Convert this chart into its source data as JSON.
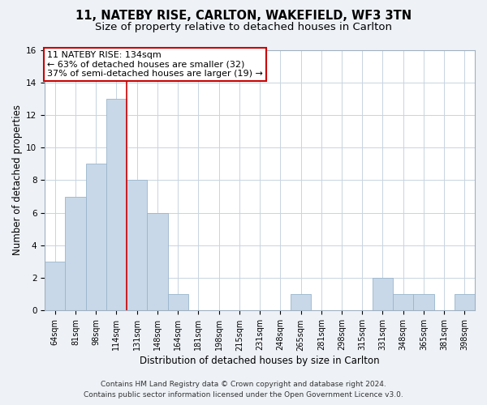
{
  "title": "11, NATEBY RISE, CARLTON, WAKEFIELD, WF3 3TN",
  "subtitle": "Size of property relative to detached houses in Carlton",
  "xlabel": "Distribution of detached houses by size in Carlton",
  "ylabel": "Number of detached properties",
  "bar_labels": [
    "64sqm",
    "81sqm",
    "98sqm",
    "114sqm",
    "131sqm",
    "148sqm",
    "164sqm",
    "181sqm",
    "198sqm",
    "215sqm",
    "231sqm",
    "248sqm",
    "265sqm",
    "281sqm",
    "298sqm",
    "315sqm",
    "331sqm",
    "348sqm",
    "365sqm",
    "381sqm",
    "398sqm"
  ],
  "bar_values": [
    3,
    7,
    9,
    13,
    8,
    6,
    1,
    0,
    0,
    0,
    0,
    0,
    1,
    0,
    0,
    0,
    2,
    1,
    1,
    0,
    1
  ],
  "bar_color": "#c8d8e8",
  "bar_edge_color": "#9ab5cc",
  "highlight_line_index": 4,
  "highlight_line_color": "#cc0000",
  "annotation_text_line1": "11 NATEBY RISE: 134sqm",
  "annotation_text_line2": "← 63% of detached houses are smaller (32)",
  "annotation_text_line3": "37% of semi-detached houses are larger (19) →",
  "annotation_box_edge_color": "#cc0000",
  "ylim": [
    0,
    16
  ],
  "yticks": [
    0,
    2,
    4,
    6,
    8,
    10,
    12,
    14,
    16
  ],
  "footer_line1": "Contains HM Land Registry data © Crown copyright and database right 2024.",
  "footer_line2": "Contains public sector information licensed under the Open Government Licence v3.0.",
  "background_color": "#eef2f7",
  "plot_bg_color": "#ffffff",
  "grid_color": "#c8d4e0",
  "title_fontsize": 10.5,
  "subtitle_fontsize": 9.5,
  "axis_label_fontsize": 8.5,
  "tick_fontsize": 7,
  "annotation_fontsize": 8,
  "footer_fontsize": 6.5
}
